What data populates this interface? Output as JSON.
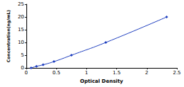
{
  "chart_data": {
    "type": "line",
    "x_label": "Optical Density",
    "y_label": "Concentration(ng/mL)",
    "x": [
      0.08,
      0.17,
      0.28,
      0.46,
      0.75,
      1.32,
      2.33
    ],
    "values": [
      0,
      0.63,
      1.25,
      2.5,
      5,
      10,
      20
    ],
    "color": "#1f3fbf",
    "marker": "diamond",
    "line_style": "smooth",
    "xlim": [
      0,
      2.5
    ],
    "xticks": [
      0,
      0.5,
      1,
      1.5,
      2,
      2.5
    ],
    "ylim": [
      0,
      25
    ],
    "yticks": [
      0,
      5,
      10,
      15,
      20,
      25
    ],
    "grid": false
  }
}
